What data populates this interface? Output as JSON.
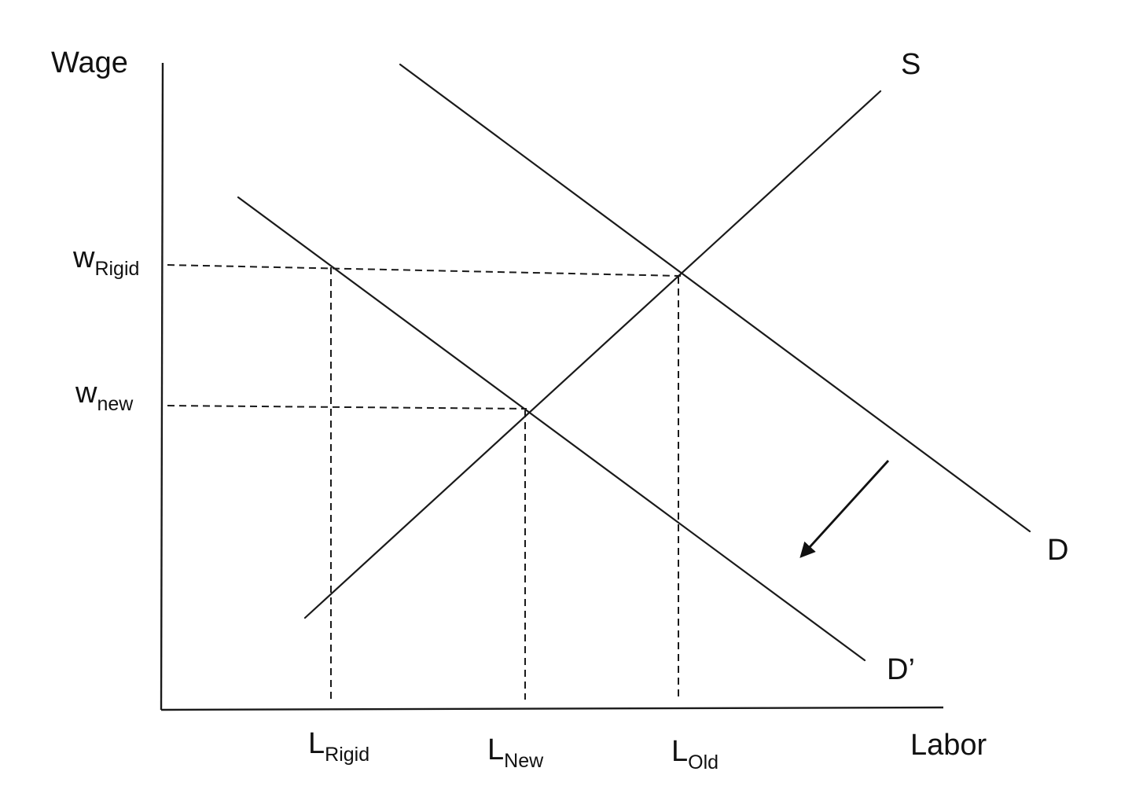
{
  "axes": {
    "y_label": "Wage",
    "x_label": "Labor"
  },
  "curves": {
    "supply": "S",
    "demand_old": "D",
    "demand_new": "D’"
  },
  "wage_levels": {
    "rigid": {
      "base": "w",
      "sub": "Rigid"
    },
    "new": {
      "base": "w",
      "sub": "new"
    }
  },
  "labor_levels": {
    "rigid": {
      "base": "L",
      "sub": "Rigid"
    },
    "new": {
      "base": "L",
      "sub": "New"
    },
    "old": {
      "base": "L",
      "sub": "Old"
    }
  },
  "shift_arrow_icon": "arrow-down-left-icon"
}
